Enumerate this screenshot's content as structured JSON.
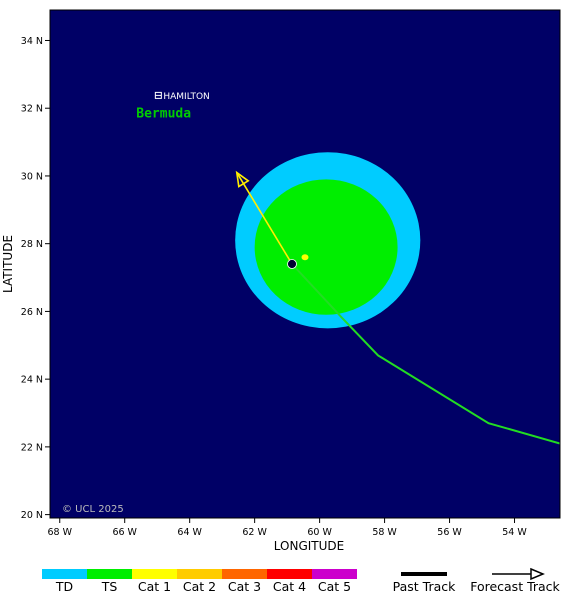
{
  "map": {
    "lon_range": [
      -68.3,
      -52.6
    ],
    "lat_range": [
      19.9,
      34.9
    ],
    "background_color": "#000066",
    "x_axis_title": "LONGITUDE",
    "y_axis_title": "LATITUDE",
    "x_ticks": [
      {
        "value": -68,
        "label": "68 W"
      },
      {
        "value": -66,
        "label": "66 W"
      },
      {
        "value": -64,
        "label": "64 W"
      },
      {
        "value": -62,
        "label": "62 W"
      },
      {
        "value": -60,
        "label": "60 W"
      },
      {
        "value": -58,
        "label": "58 W"
      },
      {
        "value": -56,
        "label": "56 W"
      },
      {
        "value": -54,
        "label": "54 W"
      }
    ],
    "y_ticks": [
      {
        "value": 20,
        "label": "20 N"
      },
      {
        "value": 22,
        "label": "22 N"
      },
      {
        "value": 24,
        "label": "24 N"
      },
      {
        "value": 26,
        "label": "26 N"
      },
      {
        "value": 28,
        "label": "28 N"
      },
      {
        "value": 30,
        "label": "30 N"
      },
      {
        "value": 32,
        "label": "32 N"
      },
      {
        "value": 34,
        "label": "34 N"
      }
    ],
    "copyright": "© UCL 2025"
  },
  "places": {
    "city": {
      "label": "HAMILTON",
      "lon": -64.78,
      "lat": 32.29
    },
    "island": {
      "label": "Bermuda",
      "lon": -64.8,
      "lat": 31.85,
      "color": "#00cc00"
    }
  },
  "storm": {
    "center": {
      "lon": -60.85,
      "lat": 27.4
    },
    "intense_spot": {
      "lon": -60.45,
      "lat": 27.6
    },
    "wind_fields": [
      {
        "category": "TD",
        "color": "#00ccff",
        "center_lon": -59.75,
        "center_lat": 28.1,
        "radius_lon": 2.85,
        "radius_lat": 2.6
      },
      {
        "category": "TS",
        "color": "#00ee00",
        "center_lon": -59.8,
        "center_lat": 27.9,
        "radius_lon": 2.2,
        "radius_lat": 2.0
      }
    ],
    "past_track": {
      "color": "#22dd22",
      "points": [
        {
          "lon": -52.6,
          "lat": 22.1
        },
        {
          "lon": -54.8,
          "lat": 22.7
        },
        {
          "lon": -58.2,
          "lat": 24.7
        },
        {
          "lon": -59.3,
          "lat": 25.8
        },
        {
          "lon": -60.85,
          "lat": 27.4
        }
      ]
    },
    "forecast_track": {
      "color": "#ffee00",
      "points": [
        {
          "lon": -60.85,
          "lat": 27.4
        },
        {
          "lon": -62.55,
          "lat": 30.1
        }
      ]
    }
  },
  "legend": {
    "categories": [
      {
        "label": "TD",
        "color": "#00ccff"
      },
      {
        "label": "TS",
        "color": "#00ee00"
      },
      {
        "label": "Cat 1",
        "color": "#ffff00"
      },
      {
        "label": "Cat 2",
        "color": "#ffcc00"
      },
      {
        "label": "Cat 3",
        "color": "#ff6600"
      },
      {
        "label": "Cat 4",
        "color": "#ff0000"
      },
      {
        "label": "Cat 5",
        "color": "#cc00cc"
      }
    ],
    "past_track_label": "Past Track",
    "forecast_track_label": "Forecast Track"
  }
}
